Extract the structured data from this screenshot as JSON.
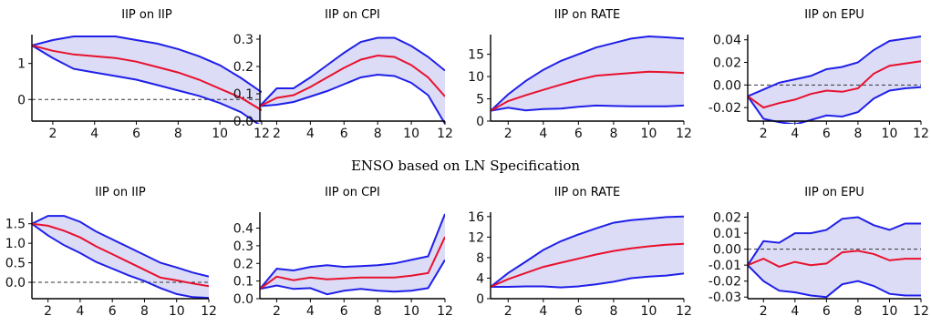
{
  "caption": "ENSO based on LN Specification",
  "colors": {
    "median": "#e8112d",
    "band_line": "#1f1fe8",
    "band_fill": "#dcdcf7",
    "zero_line": "#333333"
  },
  "chart_data": [
    {
      "type": "line",
      "title": "IIP on IIP",
      "xlabel": "",
      "ylabel": "",
      "xlim": [
        1,
        12
      ],
      "ylim": [
        -0.6,
        1.75
      ],
      "xticks": [
        2,
        4,
        6,
        8,
        10,
        12
      ],
      "yticks": [
        0,
        1
      ],
      "ytick_labels": [
        "0",
        "1"
      ],
      "x": [
        1,
        2,
        3,
        4,
        5,
        6,
        7,
        8,
        9,
        10,
        11,
        12
      ],
      "zero_line": true,
      "series": [
        {
          "role": "median",
          "values": [
            1.5,
            1.35,
            1.25,
            1.2,
            1.15,
            1.05,
            0.9,
            0.75,
            0.55,
            0.3,
            0.05,
            -0.3
          ]
        },
        {
          "role": "upper",
          "values": [
            1.5,
            1.65,
            1.75,
            1.75,
            1.75,
            1.65,
            1.55,
            1.4,
            1.2,
            0.95,
            0.6,
            0.2
          ]
        },
        {
          "role": "lower",
          "values": [
            1.5,
            1.15,
            0.85,
            0.75,
            0.65,
            0.55,
            0.4,
            0.25,
            0.1,
            -0.1,
            -0.35,
            -0.75
          ]
        }
      ]
    },
    {
      "type": "line",
      "title": "IIP on CPI",
      "xlabel": "",
      "ylabel": "",
      "xlim": [
        1,
        12
      ],
      "ylim": [
        0,
        0.31
      ],
      "xticks": [
        2,
        4,
        6,
        8,
        10,
        12
      ],
      "yticks": [
        0,
        0.1,
        0.2,
        0.3
      ],
      "ytick_labels": [
        "0.0",
        "0.1",
        "0.2",
        "0.3"
      ],
      "x": [
        1,
        2,
        3,
        4,
        5,
        6,
        7,
        8,
        9,
        10,
        11,
        12
      ],
      "zero_line": true,
      "series": [
        {
          "role": "median",
          "values": [
            0.055,
            0.085,
            0.095,
            0.125,
            0.16,
            0.195,
            0.225,
            0.24,
            0.235,
            0.205,
            0.16,
            0.09
          ]
        },
        {
          "role": "upper",
          "values": [
            0.055,
            0.12,
            0.12,
            0.16,
            0.205,
            0.25,
            0.29,
            0.305,
            0.305,
            0.275,
            0.235,
            0.185
          ]
        },
        {
          "role": "lower",
          "values": [
            0.055,
            0.06,
            0.07,
            0.09,
            0.11,
            0.135,
            0.16,
            0.17,
            0.165,
            0.14,
            0.095,
            -0.01
          ]
        }
      ]
    },
    {
      "type": "line",
      "title": "IIP on RATE",
      "xlabel": "",
      "ylabel": "",
      "xlim": [
        1,
        12
      ],
      "ylim": [
        0,
        19
      ],
      "xticks": [
        2,
        4,
        6,
        8,
        10,
        12
      ],
      "yticks": [
        0,
        5,
        10,
        15
      ],
      "ytick_labels": [
        "0",
        "5",
        "10",
        "15"
      ],
      "x": [
        1,
        2,
        3,
        4,
        5,
        6,
        7,
        8,
        9,
        10,
        11,
        12
      ],
      "zero_line": false,
      "series": [
        {
          "role": "median",
          "values": [
            2.3,
            4.5,
            5.8,
            7.0,
            8.2,
            9.3,
            10.2,
            10.5,
            10.8,
            11.1,
            11.0,
            10.8
          ]
        },
        {
          "role": "upper",
          "values": [
            2.3,
            6.0,
            9.0,
            11.5,
            13.5,
            15.0,
            16.5,
            17.5,
            18.5,
            19.0,
            18.8,
            18.5
          ]
        },
        {
          "role": "lower",
          "values": [
            2.3,
            3.0,
            2.4,
            2.7,
            2.8,
            3.2,
            3.5,
            3.4,
            3.3,
            3.3,
            3.3,
            3.5
          ]
        }
      ]
    },
    {
      "type": "line",
      "title": "IIP on EPU",
      "xlabel": "",
      "ylabel": "",
      "xlim": [
        1,
        12
      ],
      "ylim": [
        -0.032,
        0.043
      ],
      "xticks": [
        2,
        4,
        6,
        8,
        10,
        12
      ],
      "yticks": [
        -0.02,
        0,
        0.02,
        0.04
      ],
      "ytick_labels": [
        "-0.02",
        "0.00",
        "0.02",
        "0.04"
      ],
      "x": [
        1,
        2,
        3,
        4,
        5,
        6,
        7,
        8,
        9,
        10,
        11,
        12
      ],
      "zero_line": true,
      "series": [
        {
          "role": "median",
          "values": [
            -0.01,
            -0.02,
            -0.016,
            -0.013,
            -0.008,
            -0.005,
            -0.006,
            -0.003,
            0.01,
            0.017,
            0.019,
            0.021
          ]
        },
        {
          "role": "upper",
          "values": [
            -0.01,
            -0.004,
            0.002,
            0.005,
            0.008,
            0.014,
            0.016,
            0.02,
            0.031,
            0.039,
            0.041,
            0.043
          ]
        },
        {
          "role": "lower",
          "values": [
            -0.01,
            -0.03,
            -0.033,
            -0.035,
            -0.031,
            -0.027,
            -0.028,
            -0.024,
            -0.012,
            -0.005,
            -0.003,
            -0.002
          ]
        }
      ]
    },
    {
      "type": "line",
      "title": "IIP on IIP",
      "xlabel": "",
      "ylabel": "",
      "xlim": [
        1,
        12
      ],
      "ylim": [
        -0.42,
        1.75
      ],
      "xticks": [
        2,
        4,
        6,
        8,
        10,
        12
      ],
      "yticks": [
        0,
        0.5,
        1,
        1.5
      ],
      "ytick_labels": [
        "0.0",
        "0.5",
        "1.0",
        "1.5"
      ],
      "x": [
        1,
        2,
        3,
        4,
        5,
        6,
        7,
        8,
        9,
        10,
        11,
        12
      ],
      "zero_line": true,
      "series": [
        {
          "role": "median",
          "values": [
            1.5,
            1.45,
            1.32,
            1.15,
            0.92,
            0.72,
            0.52,
            0.32,
            0.12,
            0.05,
            -0.03,
            -0.1
          ]
        },
        {
          "role": "upper",
          "values": [
            1.5,
            1.7,
            1.7,
            1.55,
            1.3,
            1.1,
            0.9,
            0.7,
            0.5,
            0.38,
            0.25,
            0.15
          ]
        },
        {
          "role": "lower",
          "values": [
            1.5,
            1.2,
            0.95,
            0.75,
            0.52,
            0.35,
            0.18,
            0.03,
            -0.15,
            -0.3,
            -0.38,
            -0.4
          ]
        }
      ]
    },
    {
      "type": "line",
      "title": "IIP on CPI",
      "xlabel": "",
      "ylabel": "",
      "xlim": [
        1,
        12
      ],
      "ylim": [
        0,
        0.48
      ],
      "xticks": [
        2,
        4,
        6,
        8,
        10,
        12
      ],
      "yticks": [
        0,
        0.1,
        0.2,
        0.3,
        0.4
      ],
      "ytick_labels": [
        "0.0",
        "0.1",
        "0.2",
        "0.3",
        "0.4"
      ],
      "x": [
        1,
        2,
        3,
        4,
        5,
        6,
        7,
        8,
        9,
        10,
        11,
        12
      ],
      "zero_line": true,
      "series": [
        {
          "role": "median",
          "values": [
            0.055,
            0.125,
            0.105,
            0.12,
            0.11,
            0.115,
            0.12,
            0.12,
            0.12,
            0.13,
            0.145,
            0.35
          ]
        },
        {
          "role": "upper",
          "values": [
            0.055,
            0.17,
            0.16,
            0.18,
            0.19,
            0.18,
            0.185,
            0.19,
            0.2,
            0.22,
            0.24,
            0.48
          ]
        },
        {
          "role": "lower",
          "values": [
            0.055,
            0.075,
            0.055,
            0.06,
            0.025,
            0.045,
            0.055,
            0.045,
            0.04,
            0.045,
            0.06,
            0.22
          ]
        }
      ]
    },
    {
      "type": "line",
      "title": "IIP on RATE",
      "xlabel": "",
      "ylabel": "",
      "xlim": [
        1,
        12
      ],
      "ylim": [
        0,
        16.5
      ],
      "xticks": [
        2,
        4,
        6,
        8,
        10,
        12
      ],
      "yticks": [
        0,
        4,
        8,
        12,
        16
      ],
      "ytick_labels": [
        "0",
        "4",
        "8",
        "12",
        "16"
      ],
      "x": [
        1,
        2,
        3,
        4,
        5,
        6,
        7,
        8,
        9,
        10,
        11,
        12
      ],
      "zero_line": false,
      "series": [
        {
          "role": "median",
          "values": [
            2.3,
            3.8,
            5.0,
            6.2,
            7.0,
            7.8,
            8.6,
            9.3,
            9.8,
            10.2,
            10.5,
            10.7
          ]
        },
        {
          "role": "upper",
          "values": [
            2.3,
            5.0,
            7.2,
            9.5,
            11.2,
            12.5,
            13.7,
            14.8,
            15.3,
            15.6,
            15.9,
            16.0
          ]
        },
        {
          "role": "lower",
          "values": [
            2.3,
            2.3,
            2.4,
            2.4,
            2.2,
            2.4,
            2.8,
            3.3,
            4.0,
            4.3,
            4.5,
            4.9
          ]
        }
      ]
    },
    {
      "type": "line",
      "title": "IIP on EPU",
      "xlabel": "",
      "ylabel": "",
      "xlim": [
        1,
        12
      ],
      "ylim": [
        -0.031,
        0.022
      ],
      "xticks": [
        2,
        4,
        6,
        8,
        10,
        12
      ],
      "yticks": [
        -0.03,
        -0.02,
        -0.01,
        0,
        0.01,
        0.02
      ],
      "ytick_labels": [
        "-0.03",
        "-0.02",
        "-0.01",
        "0.00",
        "0.01",
        "0.02"
      ],
      "x": [
        1,
        2,
        3,
        4,
        5,
        6,
        7,
        8,
        9,
        10,
        11,
        12
      ],
      "zero_line": true,
      "series": [
        {
          "role": "median",
          "values": [
            -0.01,
            -0.006,
            -0.011,
            -0.008,
            -0.01,
            -0.009,
            -0.002,
            -0.001,
            -0.003,
            -0.007,
            -0.006,
            -0.006
          ]
        },
        {
          "role": "upper",
          "values": [
            -0.01,
            0.005,
            0.004,
            0.01,
            0.01,
            0.012,
            0.019,
            0.02,
            0.015,
            0.012,
            0.016,
            0.016
          ]
        },
        {
          "role": "lower",
          "values": [
            -0.01,
            -0.02,
            -0.026,
            -0.027,
            -0.029,
            -0.03,
            -0.022,
            -0.02,
            -0.023,
            -0.028,
            -0.029,
            -0.029
          ]
        }
      ]
    }
  ]
}
